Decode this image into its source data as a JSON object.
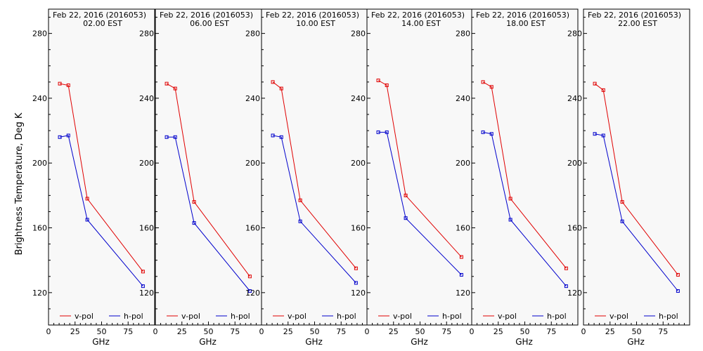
{
  "figure": {
    "ylabel": "Brightness Temperature, Deg K",
    "xlabel": "GHz",
    "background": "#ffffff",
    "plot_background": "#f8f8f8"
  },
  "chart_data": [
    {
      "type": "line",
      "title": "Feb 22, 2016 (2016053)",
      "subtitle": "02.00 EST",
      "xlabel": "GHz",
      "ylabel": "Brightness Temperature, Deg K",
      "xlim": [
        0,
        100
      ],
      "ylim": [
        100,
        295
      ],
      "x_ticks": [
        0,
        25,
        50,
        75
      ],
      "y_ticks": [
        120,
        160,
        200,
        240,
        280
      ],
      "grid": false,
      "legend": "bottom",
      "series": [
        {
          "name": "v-pol",
          "color": "#e00000",
          "x": [
            10.65,
            18.7,
            36.5,
            89.0
          ],
          "y": [
            249,
            248,
            178,
            133
          ]
        },
        {
          "name": "h-pol",
          "color": "#0000cc",
          "x": [
            10.65,
            18.7,
            36.5,
            89.0
          ],
          "y": [
            216,
            217,
            165,
            124
          ]
        }
      ]
    },
    {
      "type": "line",
      "title": "Feb 22, 2016 (2016053)",
      "subtitle": "06.00 EST",
      "xlabel": "GHz",
      "ylabel": "",
      "xlim": [
        0,
        100
      ],
      "ylim": [
        100,
        295
      ],
      "x_ticks": [
        0,
        25,
        50,
        75
      ],
      "y_ticks": [
        120,
        160,
        200,
        240,
        280
      ],
      "grid": false,
      "legend": "bottom",
      "series": [
        {
          "name": "v-pol",
          "color": "#e00000",
          "x": [
            10.65,
            18.7,
            36.5,
            89.0
          ],
          "y": [
            249,
            246,
            176,
            130
          ]
        },
        {
          "name": "h-pol",
          "color": "#0000cc",
          "x": [
            10.65,
            18.7,
            36.5,
            89.0
          ],
          "y": [
            216,
            216,
            163,
            121
          ]
        }
      ]
    },
    {
      "type": "line",
      "title": "Feb 22, 2016 (2016053)",
      "subtitle": "10.00 EST",
      "xlabel": "GHz",
      "ylabel": "",
      "xlim": [
        0,
        100
      ],
      "ylim": [
        100,
        295
      ],
      "x_ticks": [
        0,
        25,
        50,
        75
      ],
      "y_ticks": [
        120,
        160,
        200,
        240,
        280
      ],
      "grid": false,
      "legend": "bottom",
      "series": [
        {
          "name": "v-pol",
          "color": "#e00000",
          "x": [
            10.65,
            18.7,
            36.5,
            89.0
          ],
          "y": [
            250,
            246,
            177,
            135
          ]
        },
        {
          "name": "h-pol",
          "color": "#0000cc",
          "x": [
            10.65,
            18.7,
            36.5,
            89.0
          ],
          "y": [
            217,
            216,
            164,
            126
          ]
        }
      ]
    },
    {
      "type": "line",
      "title": "Feb 22, 2016 (2016053)",
      "subtitle": "14.00 EST",
      "xlabel": "GHz",
      "ylabel": "",
      "xlim": [
        0,
        100
      ],
      "ylim": [
        100,
        295
      ],
      "x_ticks": [
        0,
        25,
        50,
        75
      ],
      "y_ticks": [
        120,
        160,
        200,
        240,
        280
      ],
      "grid": false,
      "legend": "bottom",
      "series": [
        {
          "name": "v-pol",
          "color": "#e00000",
          "x": [
            10.65,
            18.7,
            36.5,
            89.0
          ],
          "y": [
            251,
            248,
            180,
            142
          ]
        },
        {
          "name": "h-pol",
          "color": "#0000cc",
          "x": [
            10.65,
            18.7,
            36.5,
            89.0
          ],
          "y": [
            219,
            219,
            166,
            131
          ]
        }
      ]
    },
    {
      "type": "line",
      "title": "Feb 22, 2016 (2016053)",
      "subtitle": "18.00 EST",
      "xlabel": "GHz",
      "ylabel": "",
      "xlim": [
        0,
        100
      ],
      "ylim": [
        100,
        295
      ],
      "x_ticks": [
        0,
        25,
        50,
        75
      ],
      "y_ticks": [
        120,
        160,
        200,
        240,
        280
      ],
      "grid": false,
      "legend": "bottom",
      "series": [
        {
          "name": "v-pol",
          "color": "#e00000",
          "x": [
            10.65,
            18.7,
            36.5,
            89.0
          ],
          "y": [
            250,
            247,
            178,
            135
          ]
        },
        {
          "name": "h-pol",
          "color": "#0000cc",
          "x": [
            10.65,
            18.7,
            36.5,
            89.0
          ],
          "y": [
            219,
            218,
            165,
            124
          ]
        }
      ]
    },
    {
      "type": "line",
      "title": "Feb 22, 2016 (2016053)",
      "subtitle": "22.00 EST",
      "xlabel": "GHz",
      "ylabel": "",
      "xlim": [
        0,
        100
      ],
      "ylim": [
        100,
        295
      ],
      "x_ticks": [
        0,
        25,
        50,
        75
      ],
      "y_ticks": [
        120,
        160,
        200,
        240,
        280
      ],
      "grid": false,
      "legend": "bottom",
      "series": [
        {
          "name": "v-pol",
          "color": "#e00000",
          "x": [
            10.65,
            18.7,
            36.5,
            89.0
          ],
          "y": [
            249,
            245,
            176,
            131
          ]
        },
        {
          "name": "h-pol",
          "color": "#0000cc",
          "x": [
            10.65,
            18.7,
            36.5,
            89.0
          ],
          "y": [
            218,
            217,
            164,
            121
          ]
        }
      ]
    }
  ]
}
